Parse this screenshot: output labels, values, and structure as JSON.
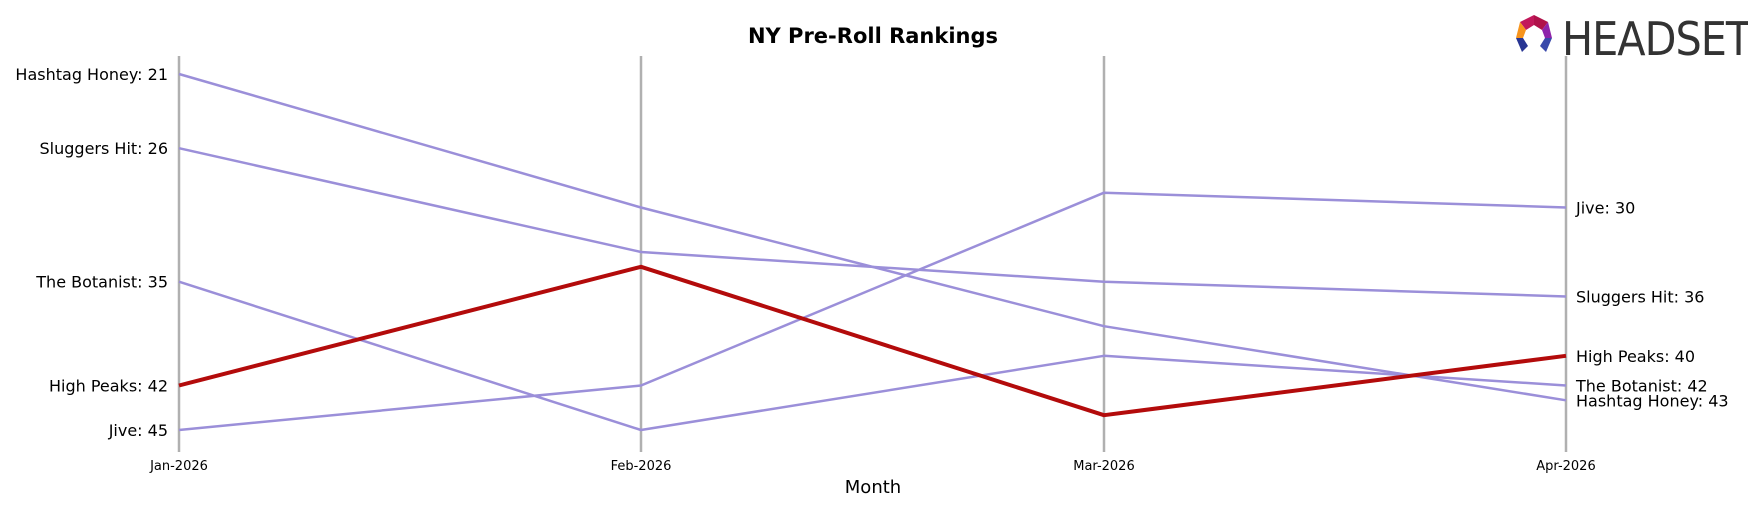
{
  "chart_data": {
    "type": "line",
    "title": "NY Pre-Roll Rankings",
    "xlabel": "Month",
    "ylabel": "",
    "categories": [
      "Jan-2026",
      "Feb-2026",
      "Mar-2026",
      "Apr-2026"
    ],
    "y_axis": "rank, inverted (rank 1 at top)",
    "ylim": [
      20,
      46
    ],
    "grid": "vertical lines at each month",
    "series": [
      {
        "name": "Hashtag Honey",
        "values": [
          21,
          30,
          38,
          43
        ],
        "color": "#9b8fd9",
        "highlight": false
      },
      {
        "name": "Sluggers Hit",
        "values": [
          26,
          33,
          35,
          36
        ],
        "color": "#9b8fd9",
        "highlight": false
      },
      {
        "name": "The Botanist",
        "values": [
          35,
          45,
          40,
          42
        ],
        "color": "#9b8fd9",
        "highlight": false
      },
      {
        "name": "High Peaks",
        "values": [
          42,
          34,
          44,
          40
        ],
        "color": "#b30b0b",
        "highlight": true
      },
      {
        "name": "Jive",
        "values": [
          45,
          42,
          29,
          30
        ],
        "color": "#9b8fd9",
        "highlight": false
      }
    ],
    "left_labels": [
      {
        "text": "Hashtag Honey: 21",
        "series": "Hashtag Honey"
      },
      {
        "text": "Sluggers Hit: 26",
        "series": "Sluggers Hit"
      },
      {
        "text": "The Botanist: 35",
        "series": "The Botanist"
      },
      {
        "text": "High Peaks: 42",
        "series": "High Peaks"
      },
      {
        "text": "Jive: 45",
        "series": "Jive"
      }
    ],
    "right_labels": [
      {
        "text": "Jive: 30",
        "series": "Jive"
      },
      {
        "text": "Sluggers Hit: 36",
        "series": "Sluggers Hit"
      },
      {
        "text": "High Peaks: 40",
        "series": "High Peaks"
      },
      {
        "text": "The Botanist: 42",
        "series": "The Botanist"
      },
      {
        "text": "Hashtag Honey: 43",
        "series": "Hashtag Honey"
      }
    ]
  },
  "logo": {
    "text": "HEADSET",
    "colors": [
      "#f7941d",
      "#c2185b",
      "#8e24aa",
      "#283593"
    ]
  },
  "colors": {
    "gridline": "#b0b0b0",
    "highlight_text": "#b30b0b",
    "default_text": "#000000"
  }
}
